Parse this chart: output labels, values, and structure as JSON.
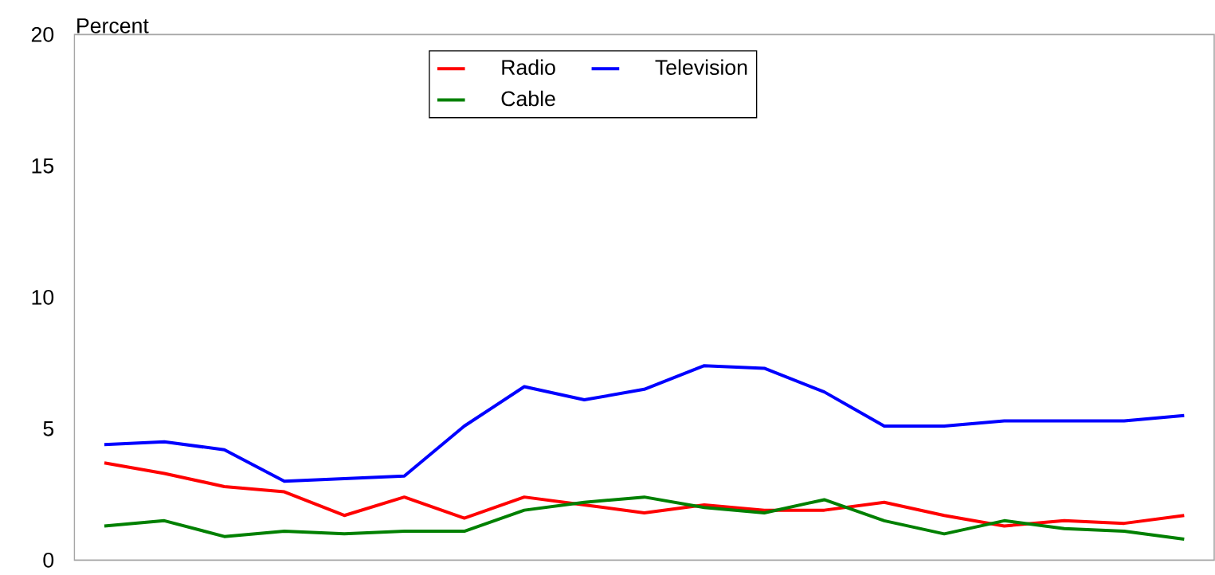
{
  "chart_data": {
    "type": "line",
    "ylabel": "Percent",
    "categories": [
      null,
      null,
      null,
      null,
      null,
      null,
      null,
      null,
      null,
      null,
      null,
      null,
      null,
      null,
      null,
      null,
      null,
      null,
      null
    ],
    "series": [
      {
        "name": "Radio",
        "color": "#ff0000",
        "values": [
          3.7,
          3.3,
          2.8,
          2.6,
          1.7,
          2.4,
          1.6,
          2.4,
          2.1,
          1.8,
          2.1,
          1.9,
          1.9,
          2.2,
          1.7,
          1.3,
          1.5,
          1.4,
          1.7
        ]
      },
      {
        "name": "Television",
        "color": "#0000ff",
        "values": [
          4.4,
          4.5,
          4.2,
          3.0,
          3.1,
          3.2,
          5.1,
          6.6,
          6.1,
          6.5,
          7.4,
          7.3,
          6.4,
          5.1,
          5.1,
          5.3,
          5.3,
          5.3,
          5.5
        ]
      },
      {
        "name": "Cable",
        "color": "#008000",
        "values": [
          1.3,
          1.5,
          0.9,
          1.1,
          1.0,
          1.1,
          1.1,
          1.9,
          2.2,
          2.4,
          2.0,
          1.8,
          2.3,
          1.5,
          1.0,
          1.5,
          1.2,
          1.1,
          0.8
        ]
      }
    ],
    "ylim": [
      0,
      20
    ],
    "yticks": [
      0,
      5,
      10,
      15,
      20
    ],
    "grid": false,
    "legend": "top",
    "marker": "none",
    "line_style": "solid",
    "tick_labels": "y"
  }
}
